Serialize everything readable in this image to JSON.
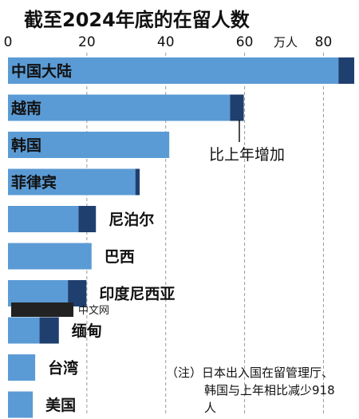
{
  "chart_data": {
    "type": "bar",
    "orientation": "horizontal",
    "stacked": true,
    "title": "截至2024年底的在留人数",
    "unit": "万人",
    "xlim": [
      0,
      88
    ],
    "ticks": [
      0,
      20,
      40,
      60,
      80
    ],
    "grid": true,
    "categories": [
      "中国大陆",
      "越南",
      "韩国",
      "菲律宾",
      "尼泊尔",
      "巴西",
      "印度尼西亚",
      "缅甸",
      "台湾",
      "美国"
    ],
    "series": [
      {
        "values": [
          83.8,
          56.3,
          40.9,
          32.3,
          17.9,
          21.2,
          15.2,
          8.0,
          6.9,
          6.3
        ]
      },
      {
        "name": "比上年增加",
        "values": [
          4.0,
          3.5,
          0,
          1.1,
          4.4,
          0,
          4.7,
          4.9,
          0,
          0
        ]
      }
    ],
    "colors": {
      "base": "#5b9bd5",
      "increase": "#1f3f6e",
      "grid": "#9a9a9a"
    },
    "note": {
      "line1": "（注）日本出入国在留管理厅、",
      "line2": "韩国与上年相比减少918",
      "line3": "人"
    }
  },
  "watermark": "中文网"
}
